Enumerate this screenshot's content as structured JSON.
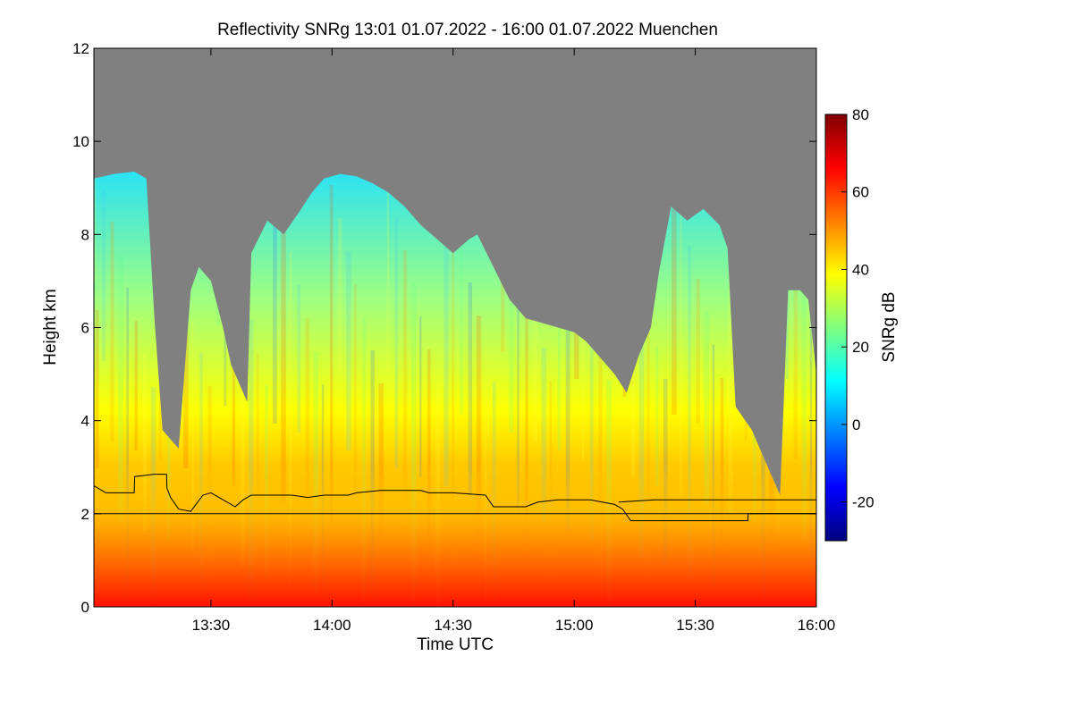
{
  "chart_data": {
    "type": "heatmap",
    "title": "Reflectivity SNRg   13:01 01.07.2022 - 16:00 01.07.2022 Muenchen",
    "xlabel": "Time UTC",
    "ylabel": "Height km",
    "xlim_minutes_utc": [
      781,
      960
    ],
    "ylim": [
      0,
      12
    ],
    "x_ticks": [
      {
        "value": 810,
        "label": "13:30"
      },
      {
        "value": 840,
        "label": "14:00"
      },
      {
        "value": 870,
        "label": "14:30"
      },
      {
        "value": 900,
        "label": "15:00"
      },
      {
        "value": 930,
        "label": "15:30"
      },
      {
        "value": 960,
        "label": "16:00"
      }
    ],
    "y_ticks": [
      {
        "value": 0,
        "label": "0"
      },
      {
        "value": 2,
        "label": "2"
      },
      {
        "value": 4,
        "label": "4"
      },
      {
        "value": 6,
        "label": "6"
      },
      {
        "value": 8,
        "label": "8"
      },
      {
        "value": 10,
        "label": "10"
      },
      {
        "value": 12,
        "label": "12"
      }
    ],
    "background_color": "#808080",
    "colorbar": {
      "label": "SNRg dB",
      "range": [
        -30,
        80
      ],
      "ticks": [
        {
          "value": -20,
          "label": "-20"
        },
        {
          "value": 0,
          "label": "0"
        },
        {
          "value": 20,
          "label": "20"
        },
        {
          "value": 40,
          "label": "40"
        },
        {
          "value": 60,
          "label": "60"
        },
        {
          "value": 80,
          "label": "80"
        }
      ],
      "colormap": [
        "#00007f",
        "#0000ff",
        "#007fff",
        "#00ffff",
        "#7fff7f",
        "#ffff00",
        "#ff7f00",
        "#ff0000",
        "#7f0000"
      ]
    },
    "echo_top_km": [
      [
        781,
        9.2
      ],
      [
        786,
        9.3
      ],
      [
        791,
        9.35
      ],
      [
        794,
        9.2
      ],
      [
        796,
        6.2
      ],
      [
        798,
        3.8
      ],
      [
        802,
        3.4
      ],
      [
        805,
        6.8
      ],
      [
        807,
        7.3
      ],
      [
        810,
        7.0
      ],
      [
        813,
        6.0
      ],
      [
        815,
        5.2
      ],
      [
        817,
        4.8
      ],
      [
        819,
        4.4
      ],
      [
        820,
        7.6
      ],
      [
        824,
        8.3
      ],
      [
        828,
        8.0
      ],
      [
        832,
        8.5
      ],
      [
        835,
        8.9
      ],
      [
        838,
        9.2
      ],
      [
        842,
        9.3
      ],
      [
        846,
        9.25
      ],
      [
        850,
        9.1
      ],
      [
        854,
        8.9
      ],
      [
        858,
        8.6
      ],
      [
        862,
        8.2
      ],
      [
        866,
        7.9
      ],
      [
        870,
        7.6
      ],
      [
        874,
        7.9
      ],
      [
        876,
        8.0
      ],
      [
        880,
        7.3
      ],
      [
        884,
        6.6
      ],
      [
        888,
        6.2
      ],
      [
        892,
        6.1
      ],
      [
        896,
        6.0
      ],
      [
        900,
        5.9
      ],
      [
        903,
        5.7
      ],
      [
        906,
        5.4
      ],
      [
        910,
        5.0
      ],
      [
        913,
        4.6
      ],
      [
        916,
        5.4
      ],
      [
        919,
        6.0
      ],
      [
        921,
        7.2
      ],
      [
        924,
        8.6
      ],
      [
        928,
        8.3
      ],
      [
        932,
        8.55
      ],
      [
        936,
        8.2
      ],
      [
        938,
        7.7
      ],
      [
        940,
        4.3
      ],
      [
        944,
        3.8
      ],
      [
        948,
        3.0
      ],
      [
        951,
        2.4
      ],
      [
        953,
        6.8
      ],
      [
        956,
        6.8
      ],
      [
        958,
        6.6
      ],
      [
        960,
        5.0
      ]
    ],
    "upper_black_line_km": [
      [
        781,
        2.6
      ],
      [
        784,
        2.45
      ],
      [
        791,
        2.45
      ],
      [
        791.1,
        2.8
      ],
      [
        796,
        2.85
      ],
      [
        799,
        2.85
      ],
      [
        799.1,
        2.55
      ],
      [
        800,
        2.35
      ],
      [
        802,
        2.1
      ],
      [
        805,
        2.05
      ],
      [
        808,
        2.4
      ],
      [
        810,
        2.45
      ],
      [
        813,
        2.3
      ],
      [
        816,
        2.15
      ],
      [
        818,
        2.3
      ],
      [
        820,
        2.4
      ],
      [
        826,
        2.4
      ],
      [
        830,
        2.4
      ],
      [
        834,
        2.35
      ],
      [
        838,
        2.4
      ],
      [
        844,
        2.4
      ],
      [
        846,
        2.45
      ],
      [
        852,
        2.5
      ],
      [
        862,
        2.5
      ],
      [
        864,
        2.45
      ],
      [
        870,
        2.45
      ],
      [
        878,
        2.4
      ],
      [
        880,
        2.15
      ],
      [
        888,
        2.15
      ],
      [
        891,
        2.25
      ],
      [
        896,
        2.3
      ],
      [
        904,
        2.3
      ],
      [
        910,
        2.2
      ],
      [
        912,
        2.1
      ],
      [
        914,
        1.85
      ],
      [
        922,
        1.85
      ],
      [
        932,
        1.85
      ],
      [
        943,
        1.85
      ],
      [
        943.1,
        2.0
      ],
      [
        950,
        2.0
      ],
      [
        960,
        2.0
      ]
    ],
    "lower_black_line_km": [
      [
        781,
        2.0
      ],
      [
        960,
        2.0
      ]
    ],
    "right_black_line_km": [
      [
        911,
        2.25
      ],
      [
        920,
        2.3
      ],
      [
        960,
        2.3
      ]
    ]
  }
}
